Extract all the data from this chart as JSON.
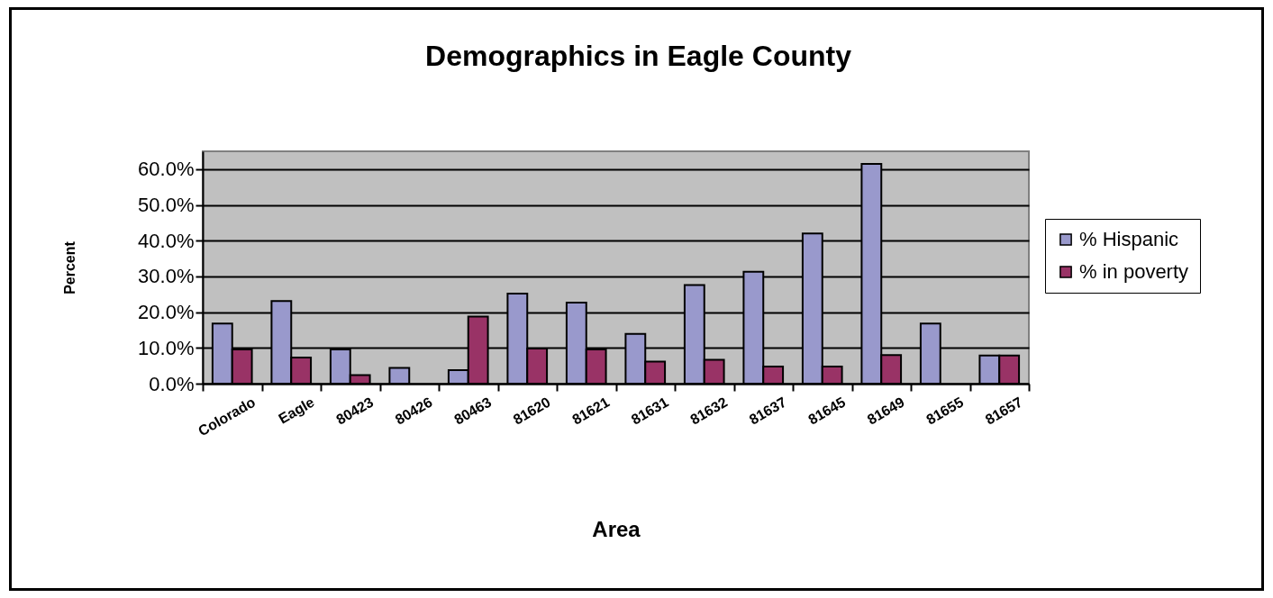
{
  "chart_data": {
    "type": "bar",
    "title": "Demographics in Eagle County",
    "xlabel": "Area",
    "ylabel": "Percent",
    "categories": [
      "Colorado",
      "Eagle",
      "80423",
      "80426",
      "80463",
      "81620",
      "81621",
      "81631",
      "81632",
      "81637",
      "81645",
      "81649",
      "81655",
      "81657"
    ],
    "series": [
      {
        "name": "% Hispanic",
        "color": "#9999cc",
        "values": [
          16.8,
          23.1,
          9.6,
          4.4,
          3.8,
          25.2,
          22.7,
          13.9,
          27.6,
          31.3,
          42.0,
          61.5,
          16.8,
          7.9
        ]
      },
      {
        "name": "% in poverty",
        "color": "#993366",
        "values": [
          9.6,
          7.3,
          2.4,
          null,
          18.8,
          9.8,
          9.6,
          6.2,
          6.7,
          4.8,
          4.8,
          8.0,
          null,
          7.9
        ]
      }
    ],
    "ylim": [
      0,
      65
    ],
    "yticks": [
      {
        "value": 0,
        "label": "0.0%"
      },
      {
        "value": 10,
        "label": "10.0%"
      },
      {
        "value": 20,
        "label": "20.0%"
      },
      {
        "value": 30,
        "label": "30.0%"
      },
      {
        "value": 40,
        "label": "40.0%"
      },
      {
        "value": 50,
        "label": "50.0%"
      },
      {
        "value": 60,
        "label": "60.0%"
      }
    ],
    "grid": "y",
    "legend": "right"
  }
}
